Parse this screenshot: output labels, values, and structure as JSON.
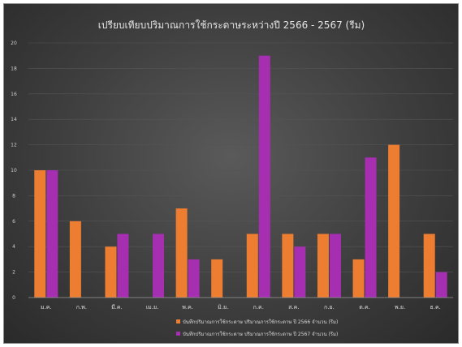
{
  "chart_data": {
    "type": "bar",
    "title": "เปรียบเทียบปริมาณการใช้กระดาษระหว่างปี 2566 - 2567 (รีม)",
    "categories": [
      "ม.ค.",
      "ก.พ.",
      "มี.ค.",
      "เม.ย.",
      "พ.ค.",
      "มิ.ย.",
      "ก.ค.",
      "ส.ค.",
      "ก.ย.",
      "ต.ค.",
      "พ.ย.",
      "ธ.ค."
    ],
    "series": [
      {
        "name": "บันทึกปริมาณการใช้กระดาษ ปริมาณการใช้กระดาษ ปี 2566 จำนวน (รีม)",
        "color": "#ed7d31",
        "values": [
          10,
          6,
          4,
          null,
          7,
          3,
          5,
          5,
          5,
          3,
          12,
          5
        ]
      },
      {
        "name": "บันทึกปริมาณการใช้กระดาษ ปริมาณการใช้กระดาษ ปี 2567 จำนวน (รีม)",
        "color": "#a52fb0",
        "values": [
          10,
          null,
          5,
          5,
          3,
          null,
          19,
          4,
          5,
          11,
          null,
          2
        ]
      }
    ],
    "ylim": [
      0,
      20
    ],
    "yticks": [
      0,
      2,
      4,
      6,
      8,
      10,
      12,
      14,
      16,
      18,
      20
    ],
    "grid": true,
    "legend_position": "bottom"
  }
}
